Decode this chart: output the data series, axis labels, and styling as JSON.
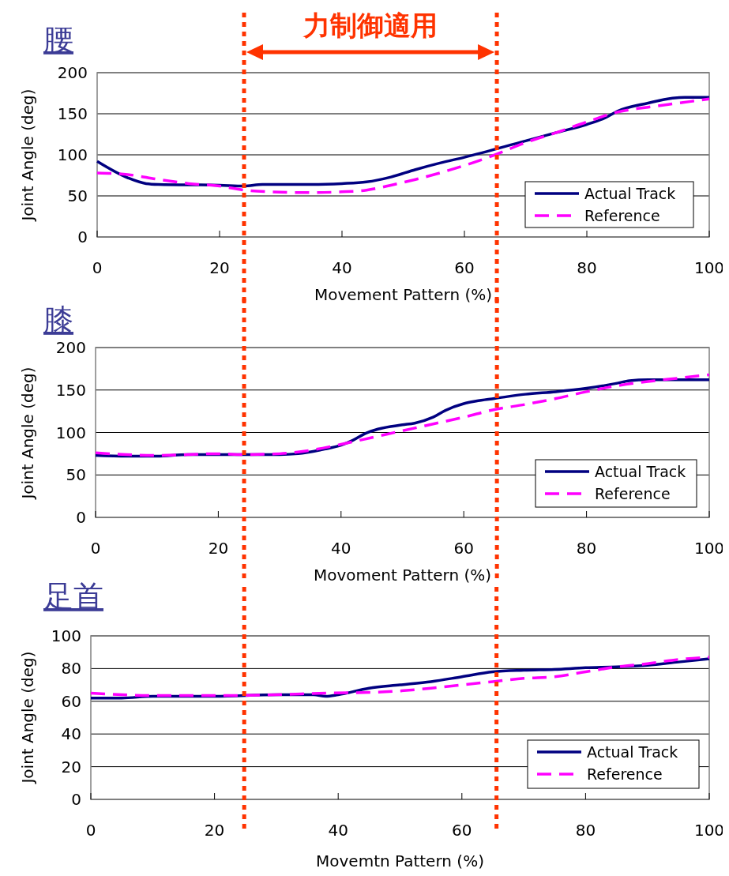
{
  "chart_data": [
    {
      "type": "line",
      "title": "腰",
      "annotations": [
        "力制御適用"
      ],
      "xlabel": "Movement Pattern (%)",
      "ylabel": "Joint Angle (deg)",
      "xlim": [
        0,
        100
      ],
      "xticks": [
        0,
        20,
        40,
        60,
        80,
        100
      ],
      "ylim": [
        0,
        200
      ],
      "yticks": [
        0,
        50,
        100,
        150,
        200
      ],
      "grid": "y",
      "legend": "bottom right",
      "ref_lines": [
        {
          "axis": "x",
          "value": 24,
          "color": "#ff3300",
          "line_style": "dotted"
        },
        {
          "axis": "x",
          "value": 65.3,
          "color": "#ff3300",
          "line_style": "dotted"
        }
      ],
      "series": [
        {
          "name": "Actual Track",
          "color": "#000080",
          "line_style": "solid",
          "x": [
            0,
            5,
            8,
            10,
            20,
            24,
            27,
            35,
            40,
            44,
            48,
            52,
            56,
            60,
            70,
            75,
            80,
            83,
            85,
            90,
            94,
            96,
            100
          ],
          "values": [
            92,
            72,
            65,
            64,
            63,
            62,
            64,
            64,
            65,
            67,
            73,
            82,
            90,
            97,
            117,
            127,
            137,
            145,
            153,
            163,
            169,
            170,
            170
          ]
        },
        {
          "name": "Reference",
          "color": "#ff00ff",
          "line_style": "dashed",
          "x": [
            0,
            5,
            10,
            15,
            20,
            24,
            28,
            35,
            40,
            44,
            48,
            52,
            56,
            60,
            65,
            70,
            75,
            80,
            85,
            90,
            95,
            100
          ],
          "values": [
            78,
            76,
            70,
            65,
            62,
            57,
            55,
            54,
            55,
            57,
            63,
            70,
            78,
            87,
            100,
            115,
            127,
            140,
            152,
            158,
            163,
            168
          ]
        }
      ]
    },
    {
      "type": "line",
      "title": "膝",
      "xlabel": "Movoment Pattern (%)",
      "ylabel": "Joint Angle (deg)",
      "xlim": [
        0,
        100
      ],
      "xticks": [
        0,
        20,
        40,
        60,
        80,
        100
      ],
      "ylim": [
        0,
        200
      ],
      "yticks": [
        0,
        50,
        100,
        150,
        200
      ],
      "grid": "y",
      "legend": "bottom right",
      "ref_lines": [
        {
          "axis": "x",
          "value": 24.2,
          "color": "#ff3300",
          "line_style": "dotted"
        },
        {
          "axis": "x",
          "value": 65.4,
          "color": "#ff3300",
          "line_style": "dotted"
        }
      ],
      "series": [
        {
          "name": "Actual Track",
          "color": "#000080",
          "line_style": "solid",
          "x": [
            0,
            5,
            10,
            15,
            24,
            30,
            33,
            37,
            40,
            42,
            44,
            46,
            50,
            52,
            55,
            57,
            60,
            62,
            65,
            70,
            75,
            80,
            85,
            87,
            90,
            100
          ],
          "values": [
            73,
            72,
            72,
            74,
            74,
            74,
            75,
            80,
            85,
            91,
            99,
            104,
            109,
            111,
            118,
            126,
            134,
            137,
            140,
            145,
            148,
            152,
            158,
            161,
            162,
            162
          ]
        },
        {
          "name": "Reference",
          "color": "#ff00ff",
          "line_style": "dashed",
          "x": [
            0,
            10,
            20,
            24,
            30,
            35,
            40,
            45,
            50,
            55,
            60,
            65,
            70,
            75,
            80,
            85,
            90,
            95,
            100
          ],
          "values": [
            76,
            73,
            75,
            74,
            75,
            79,
            86,
            94,
            102,
            110,
            118,
            127,
            133,
            140,
            148,
            155,
            160,
            164,
            168
          ]
        }
      ]
    },
    {
      "type": "line",
      "title": "足首",
      "xlabel": "Movemtn Pattern (%)",
      "ylabel": "Joint Angle (deg)",
      "xlim": [
        0,
        100
      ],
      "xticks": [
        0,
        20,
        40,
        60,
        80,
        100
      ],
      "ylim": [
        0,
        100
      ],
      "yticks": [
        0,
        20,
        40,
        60,
        80,
        100
      ],
      "grid": "y",
      "legend": "bottom right",
      "ref_lines": [
        {
          "axis": "x",
          "value": 24.8,
          "color": "#ff3300",
          "line_style": "dotted"
        },
        {
          "axis": "x",
          "value": 65.6,
          "color": "#ff3300",
          "line_style": "dotted"
        }
      ],
      "series": [
        {
          "name": "Actual Track",
          "color": "#000080",
          "line_style": "solid",
          "x": [
            0,
            5,
            10,
            20,
            30,
            36,
            38,
            40,
            45,
            50,
            55,
            60,
            65,
            70,
            75,
            80,
            85,
            90,
            95,
            100
          ],
          "values": [
            62,
            62,
            63,
            63,
            64,
            64,
            63,
            64,
            68,
            70,
            72,
            75,
            78,
            79,
            79.5,
            80.5,
            81,
            82,
            84,
            86
          ]
        },
        {
          "name": "Reference",
          "color": "#ff00ff",
          "line_style": "dashed",
          "x": [
            0,
            10,
            20,
            30,
            38,
            46,
            55,
            60,
            65,
            70,
            75,
            80,
            85,
            90,
            95,
            100
          ],
          "values": [
            65,
            63.5,
            63.5,
            64,
            65,
            65.5,
            68,
            70,
            72,
            74,
            75,
            78,
            81,
            83,
            85.5,
            87
          ]
        }
      ]
    }
  ]
}
